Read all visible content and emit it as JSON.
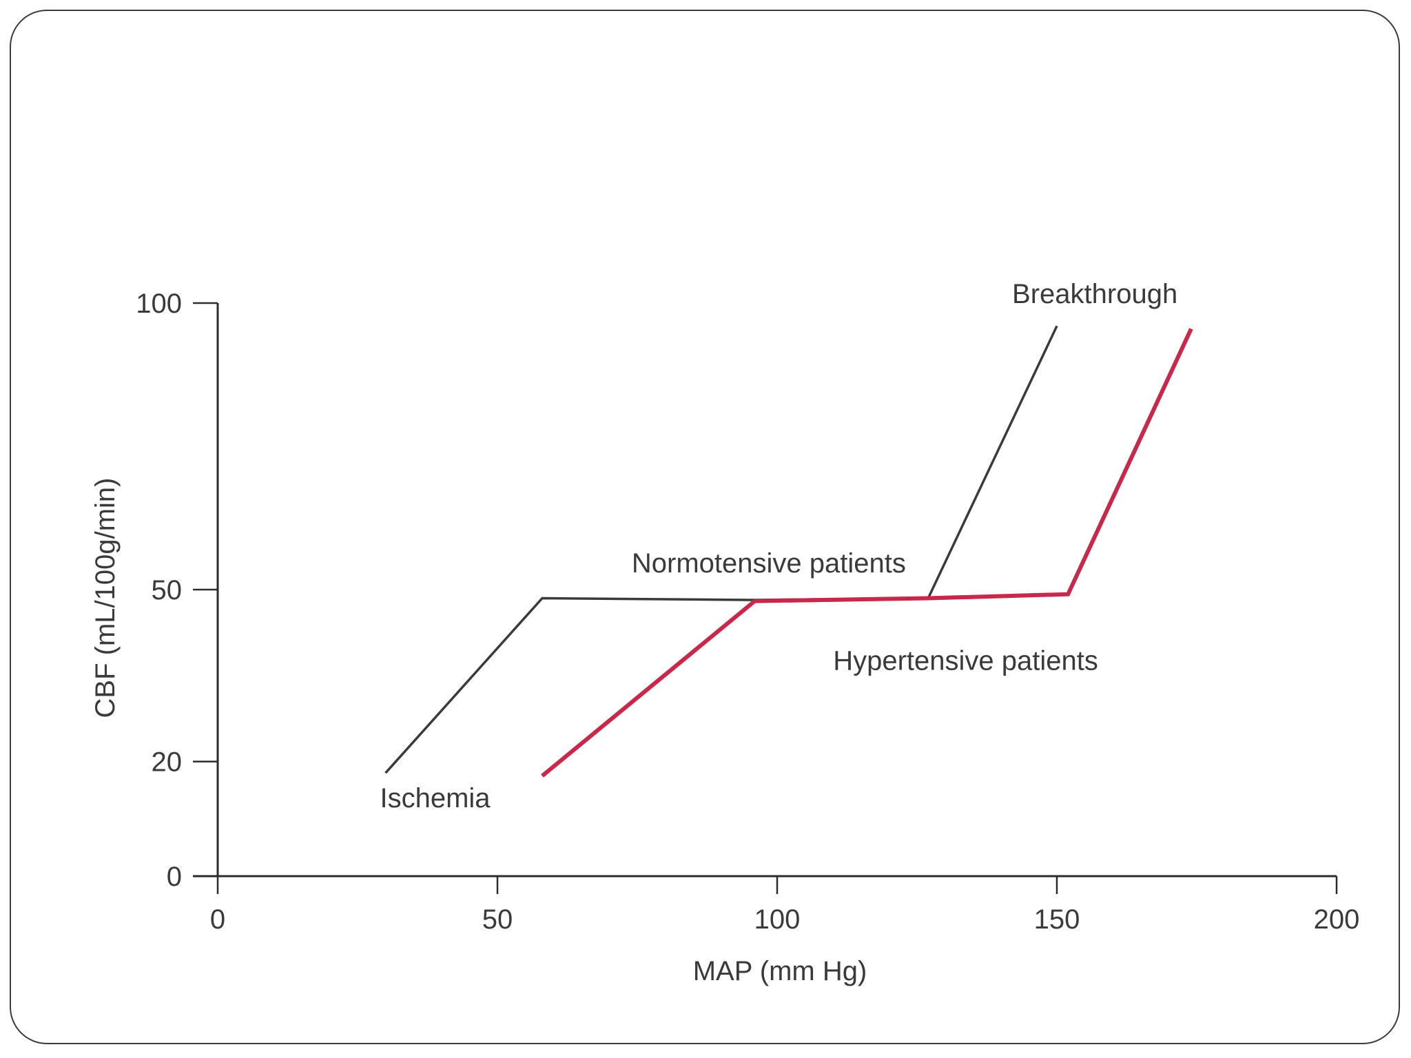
{
  "chart_data": {
    "type": "line",
    "title": "",
    "xlabel": "MAP (mm Hg)",
    "ylabel": "CBF (mL/100g/min)",
    "xlim": [
      0,
      200
    ],
    "ylim": [
      0,
      100
    ],
    "x_ticks": [
      0,
      50,
      100,
      150,
      200
    ],
    "y_ticks": [
      0,
      20,
      50,
      100
    ],
    "grid": false,
    "series": [
      {
        "color": "#3a3a3a",
        "points": [
          [
            30,
            18
          ],
          [
            58,
            48.5
          ],
          [
            95,
            48.2
          ],
          [
            127,
            48.5
          ],
          [
            150,
            96
          ]
        ]
      },
      {
        "color": "#c8284a",
        "points": [
          [
            58,
            17.5
          ],
          [
            96,
            48
          ],
          [
            127,
            48.5
          ],
          [
            152,
            49.2
          ],
          [
            174,
            95.5
          ]
        ]
      }
    ],
    "annotations": [
      {
        "text": "Breakthrough",
        "x": 142,
        "y": 100
      },
      {
        "text": "Normotensive patients",
        "x": 74,
        "y": 53
      },
      {
        "text": "Hypertensive patients",
        "x": 110,
        "y": 36
      },
      {
        "text": "Ischemia",
        "x": 29,
        "y": 12
      }
    ]
  }
}
